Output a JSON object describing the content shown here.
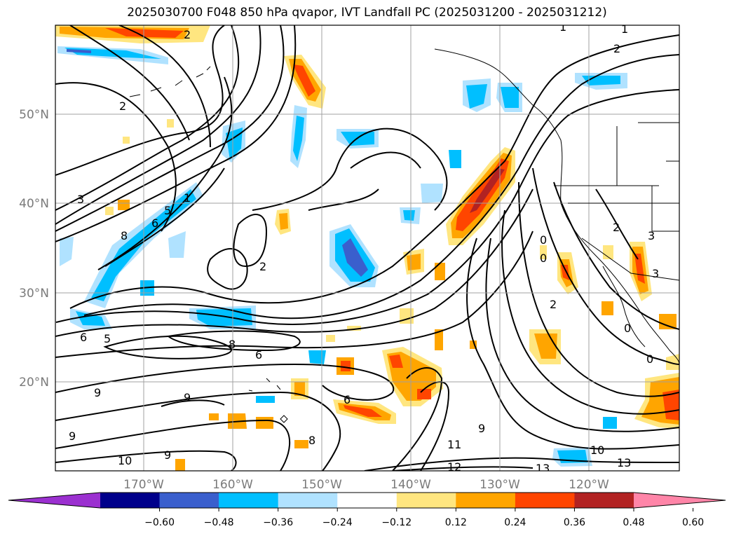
{
  "title": "2025030700 F048 850 hPa qvapor, IVT Landfall PC (2025031200 - 2025031212)",
  "lat_labels": [
    "50°N",
    "40°N",
    "30°N",
    "20°N"
  ],
  "lon_labels": [
    "170°W",
    "160°W",
    "150°W",
    "140°W",
    "130°W",
    "120°W"
  ],
  "colorbar": {
    "colors": [
      "#9b30d0",
      "#00008b",
      "#3a5fcd",
      "#00bfff",
      "#b0e2ff",
      "#ffffff",
      "#ffe680",
      "#ffa500",
      "#ff4500",
      "#b22222",
      "#ff85a8"
    ],
    "ticks": [
      "−0.60",
      "−0.48",
      "−0.36",
      "−0.24",
      "−0.12",
      "0.12",
      "0.24",
      "0.36",
      "0.48",
      "0.60"
    ]
  },
  "contour_labels": [
    "2",
    "1",
    "1",
    "2",
    "2",
    "3",
    "1",
    "8",
    "6",
    "5",
    "2",
    "6",
    "5",
    "8",
    "6",
    "9",
    "9",
    "6",
    "9",
    "10",
    "9",
    "8",
    "9",
    "11",
    "12",
    "10",
    "13",
    "13",
    "0",
    "0",
    "2",
    "2",
    "3",
    "3",
    "0",
    "0"
  ]
}
